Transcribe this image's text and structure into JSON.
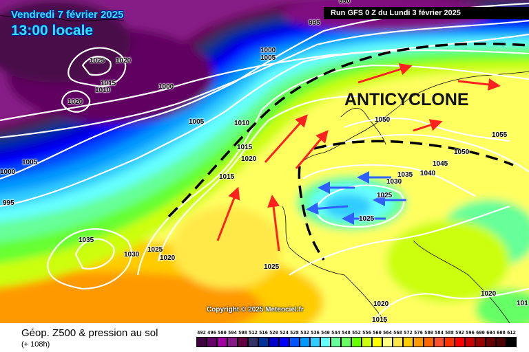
{
  "header": {
    "date": "Vendredi 7 février 2025",
    "time": "13:00 locale",
    "run": "Run GFS 0 Z du Lundi 3 février 2025"
  },
  "map": {
    "annotation": "ANTICYCLONE",
    "copyright": "Copyright © 2025 Meteociel.fr",
    "isobar_labels": [
      "990",
      "995",
      "1000",
      "1005",
      "1025",
      "1020",
      "1015",
      "1010",
      "1000",
      "1020",
      "1005",
      "1010",
      "1015",
      "1020",
      "1015",
      "1005",
      "1000",
      "995",
      "1035",
      "1030",
      "1025",
      "1020",
      "1025",
      "1050",
      "1055",
      "1050",
      "1045",
      "1040",
      "1035",
      "1030",
      "1025",
      "1025",
      "1020",
      "1015",
      "1020",
      "101"
    ],
    "arrow_colors": {
      "warm_advection": "#ff2020",
      "cold_advection": "#3060ff"
    },
    "front_line_color": "#000000"
  },
  "footer": {
    "title": "Géop. Z500 & pression au sol",
    "subtitle": "(+ 108h)"
  },
  "legend": {
    "labels": [
      "492",
      "496",
      "500",
      "504",
      "508",
      "512",
      "516",
      "520",
      "524",
      "528",
      "532",
      "536",
      "540",
      "544",
      "548",
      "552",
      "556",
      "560",
      "564",
      "568",
      "572",
      "576",
      "580",
      "584",
      "588",
      "592",
      "596",
      "600",
      "604",
      "608",
      "612"
    ],
    "colors": [
      "#400040",
      "#660066",
      "#a000a0",
      "#861a86",
      "#600040",
      "#333366",
      "#003399",
      "#0000cc",
      "#0000ff",
      "#0055ff",
      "#0099ff",
      "#33ccff",
      "#66ffff",
      "#66ff99",
      "#66ff66",
      "#66ff00",
      "#ccff10",
      "#ffff00",
      "#ffff80",
      "#ffe94a",
      "#ffcc00",
      "#ff9900",
      "#ff6600",
      "#ff5030",
      "#ff3300",
      "#ff0000",
      "#cc0000",
      "#990000",
      "#660000",
      "#4a0000",
      "#000000"
    ]
  }
}
